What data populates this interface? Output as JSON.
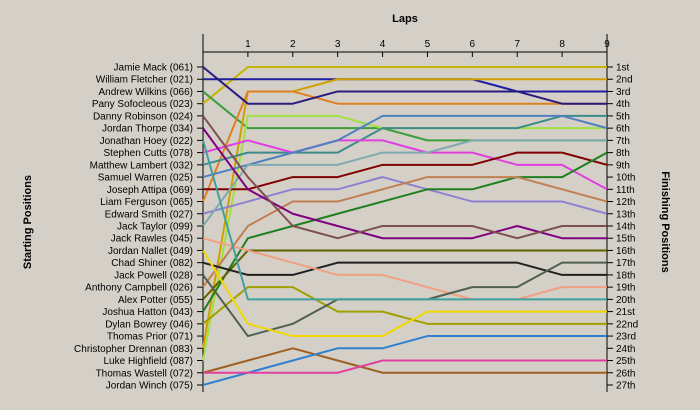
{
  "chart_data": {
    "type": "line",
    "title": "",
    "x_axis_title": "Laps",
    "left_axis_title": "Starting Positions",
    "right_axis_title": "Finishing Positions",
    "laps": [
      1,
      2,
      3,
      4,
      5,
      6,
      7,
      8,
      9
    ],
    "starting_labels": [
      "Jamie Mack (061)",
      "William Fletcher (021)",
      "Andrew Wilkins (066)",
      "Pany Sofocleous (023)",
      "Danny Robinson (024)",
      "Jordan Thorpe (034)",
      "Jonathan Hoey (022)",
      "Stephen Cutts (078)",
      "Matthew Lambert (032)",
      "Samuel Warren (025)",
      "Joseph Attipa (069)",
      "Liam Ferguson (065)",
      "Edward Smith (027)",
      "Jack Taylor (099)",
      "Jack Rawles (045)",
      "Jordan Nallet (049)",
      "Chad Shiner (082)",
      "Jack Powell (028)",
      "Anthony Campbell (026)",
      "Alex Potter (055)",
      "Joshua Hatton (043)",
      "Dylan Bowrey (046)",
      "Thomas Prior (071)",
      "Christopher Drennan (083)",
      "Luke Highfield (087)",
      "Thomas Wastell (072)",
      "Jordan Winch (075)"
    ],
    "finishing_labels": [
      "1st",
      "2nd",
      "3rd",
      "4th",
      "5th",
      "6th",
      "7th",
      "8th",
      "9th",
      "10th",
      "11th",
      "12th",
      "13th",
      "14th",
      "15th",
      "16th",
      "17th",
      "18th",
      "19th",
      "20th",
      "21st",
      "22nd",
      "23rd",
      "24th",
      "25th",
      "26th",
      "27th"
    ],
    "series": [
      {
        "color": "#c8b400",
        "positions": [
          4,
          1,
          1,
          1,
          1,
          1,
          1,
          1,
          1,
          1
        ]
      },
      {
        "color": "#1e1ea0",
        "positions": [
          2,
          2,
          2,
          2,
          2,
          2,
          2,
          3,
          3,
          3
        ]
      },
      {
        "color": "#3c9e3c",
        "positions": [
          3,
          6,
          6,
          6,
          6,
          7,
          7,
          7,
          7,
          7
        ]
      },
      {
        "color": "#d0a000",
        "positions": [
          24,
          3,
          3,
          2,
          2,
          2,
          2,
          2,
          2,
          2
        ]
      },
      {
        "color": "#e08020",
        "positions": [
          12,
          3,
          3,
          4,
          4,
          4,
          4,
          4,
          4,
          4
        ]
      },
      {
        "color": "#a0e040",
        "positions": [
          25,
          5,
          5,
          5,
          6,
          6,
          6,
          6,
          6,
          6
        ]
      },
      {
        "color": "#3c8c8c",
        "positions": [
          9,
          8,
          8,
          8,
          6,
          6,
          6,
          6,
          5,
          5
        ]
      },
      {
        "color": "#e040e0",
        "positions": [
          8,
          7,
          8,
          7,
          7,
          8,
          8,
          9,
          9,
          11
        ]
      },
      {
        "color": "#5080c0",
        "positions": [
          10,
          9,
          8,
          7,
          5,
          5,
          5,
          5,
          5,
          6
        ]
      },
      {
        "color": "#800000",
        "positions": [
          11,
          11,
          10,
          10,
          9,
          9,
          9,
          8,
          8,
          9
        ]
      },
      {
        "color": "#9080d0",
        "positions": [
          13,
          12,
          11,
          11,
          10,
          11,
          12,
          12,
          12,
          13
        ]
      },
      {
        "color": "#208020",
        "positions": [
          21,
          15,
          14,
          13,
          12,
          11,
          11,
          10,
          10,
          8
        ]
      },
      {
        "color": "#80aab0",
        "positions": [
          14,
          9,
          9,
          9,
          8,
          8,
          7,
          7,
          7,
          7
        ]
      },
      {
        "color": "#c08050",
        "positions": [
          19,
          14,
          12,
          12,
          11,
          10,
          10,
          10,
          11,
          12
        ]
      },
      {
        "color": "#800080",
        "positions": [
          6,
          11,
          13,
          14,
          15,
          15,
          15,
          14,
          15,
          15
        ]
      },
      {
        "color": "#606000",
        "positions": [
          20,
          16,
          16,
          16,
          16,
          16,
          16,
          16,
          16,
          16
        ]
      },
      {
        "color": "#202020",
        "positions": [
          17,
          18,
          18,
          17,
          17,
          17,
          17,
          17,
          18,
          18
        ]
      },
      {
        "color": "#f0a080",
        "positions": [
          15,
          16,
          17,
          18,
          18,
          19,
          20,
          20,
          19,
          19
        ]
      },
      {
        "color": "#a0a000",
        "positions": [
          22,
          19,
          19,
          21,
          21,
          22,
          22,
          22,
          22,
          22
        ]
      },
      {
        "color": "#506050",
        "positions": [
          18,
          23,
          22,
          20,
          20,
          20,
          19,
          19,
          17,
          17
        ]
      },
      {
        "color": "#40a0a0",
        "positions": [
          7,
          20,
          20,
          20,
          20,
          20,
          20,
          20,
          20,
          20
        ]
      },
      {
        "color": "#f0d800",
        "positions": [
          16,
          22,
          23,
          23,
          23,
          21,
          21,
          21,
          21,
          21
        ]
      },
      {
        "color": "#805050",
        "positions": [
          5,
          10,
          14,
          15,
          14,
          14,
          14,
          15,
          14,
          14
        ]
      },
      {
        "color": "#a06020",
        "positions": [
          26,
          25,
          24,
          25,
          26,
          26,
          26,
          26,
          26,
          26
        ]
      },
      {
        "color": "#3080d0",
        "positions": [
          27,
          26,
          25,
          24,
          24,
          23,
          23,
          23,
          23,
          23
        ]
      },
      {
        "color": "#e040a0",
        "positions": [
          26,
          26,
          26,
          26,
          25,
          25,
          25,
          25,
          25,
          25
        ]
      },
      {
        "color": "#2a1a80",
        "positions": [
          1,
          4,
          4,
          3,
          3,
          3,
          3,
          3,
          4,
          4
        ]
      }
    ]
  }
}
